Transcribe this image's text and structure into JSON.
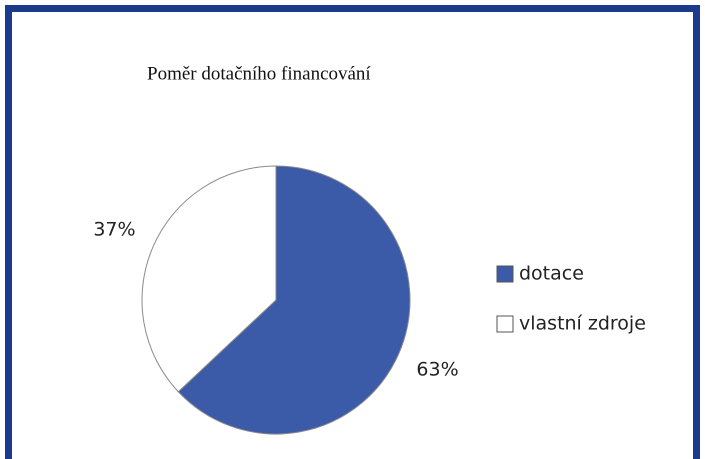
{
  "chart_data": {
    "type": "pie",
    "title": "Poměr dotačního financování",
    "categories": [
      "dotace",
      "vlastní zdroje"
    ],
    "values": [
      63,
      37
    ],
    "value_labels": [
      "63%",
      "37%"
    ],
    "colors": [
      "#3b5ba9",
      "#ffffff"
    ],
    "legend": "right"
  }
}
